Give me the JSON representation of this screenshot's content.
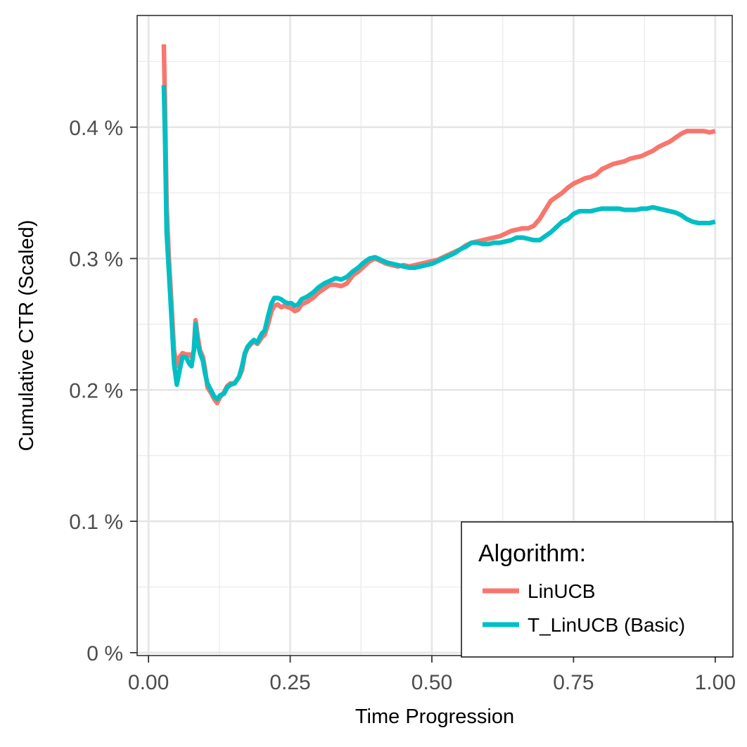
{
  "chart_data": {
    "type": "line",
    "xlabel": "Time Progression",
    "ylabel": "Cumulative CTR (Scaled)",
    "xlim": [
      -0.02,
      1.03
    ],
    "ylim": [
      -0.0022,
      0.485
    ],
    "x_ticks": [
      0,
      0.25,
      0.5,
      0.75,
      1
    ],
    "x_tick_labels": [
      "0.00",
      "0.25",
      "0.50",
      "0.75",
      "1.00"
    ],
    "y_ticks": [
      0,
      0.1,
      0.2,
      0.3,
      0.4
    ],
    "y_tick_labels": [
      "0 %",
      "0.1 %",
      "0.2 %",
      "0.3 %",
      "0.4 %"
    ],
    "grid": true,
    "legend": {
      "title": "Algorithm:",
      "position": "bottom-right"
    },
    "series": [
      {
        "name": "LinUCB",
        "color": "#F8766D",
        "points": [
          [
            0.027,
            0.463
          ],
          [
            0.029,
            0.42
          ],
          [
            0.032,
            0.34
          ],
          [
            0.036,
            0.3
          ],
          [
            0.04,
            0.27
          ],
          [
            0.045,
            0.23
          ],
          [
            0.05,
            0.218
          ],
          [
            0.055,
            0.225
          ],
          [
            0.06,
            0.228
          ],
          [
            0.066,
            0.227
          ],
          [
            0.072,
            0.227
          ],
          [
            0.076,
            0.225
          ],
          [
            0.08,
            0.23
          ],
          [
            0.083,
            0.253
          ],
          [
            0.087,
            0.24
          ],
          [
            0.091,
            0.23
          ],
          [
            0.096,
            0.225
          ],
          [
            0.1,
            0.215
          ],
          [
            0.104,
            0.202
          ],
          [
            0.11,
            0.198
          ],
          [
            0.116,
            0.193
          ],
          [
            0.121,
            0.19
          ],
          [
            0.127,
            0.195
          ],
          [
            0.133,
            0.198
          ],
          [
            0.139,
            0.203
          ],
          [
            0.145,
            0.205
          ],
          [
            0.152,
            0.205
          ],
          [
            0.16,
            0.21
          ],
          [
            0.165,
            0.215
          ],
          [
            0.17,
            0.227
          ],
          [
            0.175,
            0.232
          ],
          [
            0.181,
            0.235
          ],
          [
            0.186,
            0.237
          ],
          [
            0.192,
            0.235
          ],
          [
            0.2,
            0.24
          ],
          [
            0.205,
            0.242
          ],
          [
            0.211,
            0.25
          ],
          [
            0.217,
            0.26
          ],
          [
            0.222,
            0.264
          ],
          [
            0.228,
            0.265
          ],
          [
            0.234,
            0.263
          ],
          [
            0.24,
            0.264
          ],
          [
            0.246,
            0.263
          ],
          [
            0.252,
            0.262
          ],
          [
            0.258,
            0.26
          ],
          [
            0.264,
            0.261
          ],
          [
            0.27,
            0.265
          ],
          [
            0.28,
            0.267
          ],
          [
            0.29,
            0.27
          ],
          [
            0.3,
            0.274
          ],
          [
            0.31,
            0.277
          ],
          [
            0.32,
            0.28
          ],
          [
            0.33,
            0.28
          ],
          [
            0.34,
            0.279
          ],
          [
            0.35,
            0.281
          ],
          [
            0.36,
            0.287
          ],
          [
            0.37,
            0.29
          ],
          [
            0.38,
            0.294
          ],
          [
            0.39,
            0.298
          ],
          [
            0.4,
            0.3
          ],
          [
            0.41,
            0.298
          ],
          [
            0.42,
            0.296
          ],
          [
            0.43,
            0.295
          ],
          [
            0.44,
            0.294
          ],
          [
            0.45,
            0.295
          ],
          [
            0.46,
            0.294
          ],
          [
            0.47,
            0.295
          ],
          [
            0.48,
            0.296
          ],
          [
            0.49,
            0.297
          ],
          [
            0.5,
            0.298
          ],
          [
            0.51,
            0.299
          ],
          [
            0.52,
            0.301
          ],
          [
            0.53,
            0.303
          ],
          [
            0.54,
            0.305
          ],
          [
            0.55,
            0.307
          ],
          [
            0.56,
            0.31
          ],
          [
            0.57,
            0.312
          ],
          [
            0.58,
            0.313
          ],
          [
            0.59,
            0.314
          ],
          [
            0.6,
            0.315
          ],
          [
            0.61,
            0.316
          ],
          [
            0.62,
            0.317
          ],
          [
            0.63,
            0.319
          ],
          [
            0.64,
            0.321
          ],
          [
            0.65,
            0.322
          ],
          [
            0.66,
            0.323
          ],
          [
            0.67,
            0.323
          ],
          [
            0.68,
            0.325
          ],
          [
            0.69,
            0.33
          ],
          [
            0.7,
            0.337
          ],
          [
            0.71,
            0.344
          ],
          [
            0.72,
            0.347
          ],
          [
            0.73,
            0.35
          ],
          [
            0.74,
            0.354
          ],
          [
            0.75,
            0.357
          ],
          [
            0.76,
            0.359
          ],
          [
            0.77,
            0.361
          ],
          [
            0.78,
            0.362
          ],
          [
            0.79,
            0.364
          ],
          [
            0.8,
            0.368
          ],
          [
            0.81,
            0.37
          ],
          [
            0.82,
            0.372
          ],
          [
            0.83,
            0.373
          ],
          [
            0.84,
            0.374
          ],
          [
            0.85,
            0.376
          ],
          [
            0.86,
            0.377
          ],
          [
            0.87,
            0.378
          ],
          [
            0.88,
            0.38
          ],
          [
            0.89,
            0.382
          ],
          [
            0.9,
            0.385
          ],
          [
            0.91,
            0.387
          ],
          [
            0.92,
            0.389
          ],
          [
            0.93,
            0.392
          ],
          [
            0.94,
            0.395
          ],
          [
            0.95,
            0.397
          ],
          [
            0.96,
            0.397
          ],
          [
            0.97,
            0.397
          ],
          [
            0.98,
            0.397
          ],
          [
            0.99,
            0.396
          ],
          [
            1.0,
            0.397
          ]
        ]
      },
      {
        "name": "T_LinUCB (Basic)",
        "color": "#00BFC4",
        "points": [
          [
            0.027,
            0.432
          ],
          [
            0.029,
            0.395
          ],
          [
            0.032,
            0.32
          ],
          [
            0.036,
            0.29
          ],
          [
            0.04,
            0.26
          ],
          [
            0.045,
            0.22
          ],
          [
            0.05,
            0.204
          ],
          [
            0.055,
            0.215
          ],
          [
            0.06,
            0.225
          ],
          [
            0.066,
            0.225
          ],
          [
            0.072,
            0.22
          ],
          [
            0.076,
            0.218
          ],
          [
            0.08,
            0.23
          ],
          [
            0.083,
            0.25
          ],
          [
            0.087,
            0.235
          ],
          [
            0.091,
            0.228
          ],
          [
            0.096,
            0.222
          ],
          [
            0.1,
            0.212
          ],
          [
            0.104,
            0.205
          ],
          [
            0.11,
            0.2
          ],
          [
            0.116,
            0.195
          ],
          [
            0.121,
            0.193
          ],
          [
            0.127,
            0.196
          ],
          [
            0.133,
            0.197
          ],
          [
            0.139,
            0.202
          ],
          [
            0.145,
            0.204
          ],
          [
            0.152,
            0.205
          ],
          [
            0.16,
            0.21
          ],
          [
            0.165,
            0.218
          ],
          [
            0.17,
            0.228
          ],
          [
            0.175,
            0.233
          ],
          [
            0.181,
            0.236
          ],
          [
            0.186,
            0.238
          ],
          [
            0.192,
            0.236
          ],
          [
            0.2,
            0.243
          ],
          [
            0.205,
            0.245
          ],
          [
            0.211,
            0.256
          ],
          [
            0.217,
            0.266
          ],
          [
            0.222,
            0.27
          ],
          [
            0.228,
            0.27
          ],
          [
            0.234,
            0.269
          ],
          [
            0.24,
            0.267
          ],
          [
            0.246,
            0.266
          ],
          [
            0.252,
            0.266
          ],
          [
            0.258,
            0.264
          ],
          [
            0.264,
            0.265
          ],
          [
            0.27,
            0.269
          ],
          [
            0.28,
            0.271
          ],
          [
            0.29,
            0.274
          ],
          [
            0.3,
            0.278
          ],
          [
            0.31,
            0.281
          ],
          [
            0.32,
            0.283
          ],
          [
            0.33,
            0.285
          ],
          [
            0.34,
            0.284
          ],
          [
            0.35,
            0.286
          ],
          [
            0.36,
            0.29
          ],
          [
            0.37,
            0.293
          ],
          [
            0.38,
            0.297
          ],
          [
            0.39,
            0.3
          ],
          [
            0.4,
            0.301
          ],
          [
            0.41,
            0.299
          ],
          [
            0.42,
            0.297
          ],
          [
            0.43,
            0.296
          ],
          [
            0.44,
            0.295
          ],
          [
            0.45,
            0.294
          ],
          [
            0.46,
            0.293
          ],
          [
            0.47,
            0.293
          ],
          [
            0.48,
            0.294
          ],
          [
            0.49,
            0.295
          ],
          [
            0.5,
            0.296
          ],
          [
            0.51,
            0.298
          ],
          [
            0.52,
            0.3
          ],
          [
            0.53,
            0.302
          ],
          [
            0.54,
            0.304
          ],
          [
            0.55,
            0.307
          ],
          [
            0.56,
            0.309
          ],
          [
            0.57,
            0.312
          ],
          [
            0.58,
            0.312
          ],
          [
            0.59,
            0.311
          ],
          [
            0.6,
            0.311
          ],
          [
            0.61,
            0.312
          ],
          [
            0.62,
            0.312
          ],
          [
            0.63,
            0.313
          ],
          [
            0.64,
            0.314
          ],
          [
            0.65,
            0.316
          ],
          [
            0.66,
            0.316
          ],
          [
            0.67,
            0.315
          ],
          [
            0.68,
            0.314
          ],
          [
            0.69,
            0.314
          ],
          [
            0.7,
            0.317
          ],
          [
            0.71,
            0.32
          ],
          [
            0.72,
            0.324
          ],
          [
            0.73,
            0.328
          ],
          [
            0.74,
            0.33
          ],
          [
            0.75,
            0.334
          ],
          [
            0.76,
            0.336
          ],
          [
            0.77,
            0.336
          ],
          [
            0.78,
            0.336
          ],
          [
            0.79,
            0.337
          ],
          [
            0.8,
            0.338
          ],
          [
            0.81,
            0.338
          ],
          [
            0.82,
            0.338
          ],
          [
            0.83,
            0.338
          ],
          [
            0.84,
            0.337
          ],
          [
            0.85,
            0.337
          ],
          [
            0.86,
            0.337
          ],
          [
            0.87,
            0.338
          ],
          [
            0.88,
            0.338
          ],
          [
            0.89,
            0.339
          ],
          [
            0.9,
            0.338
          ],
          [
            0.91,
            0.337
          ],
          [
            0.92,
            0.336
          ],
          [
            0.93,
            0.335
          ],
          [
            0.94,
            0.333
          ],
          [
            0.95,
            0.33
          ],
          [
            0.96,
            0.328
          ],
          [
            0.97,
            0.327
          ],
          [
            0.98,
            0.327
          ],
          [
            0.99,
            0.327
          ],
          [
            1.0,
            0.328
          ]
        ]
      }
    ]
  }
}
